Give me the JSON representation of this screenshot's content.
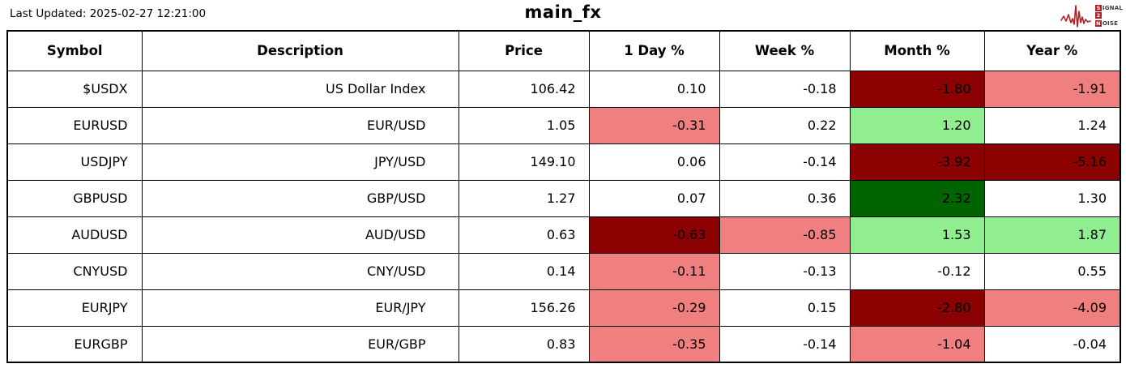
{
  "page": {
    "last_updated": "Last Updated: 2025-02-27 12:21:00",
    "title": "main_fx"
  },
  "logo": {
    "line1_initial": "S",
    "line1_rest": "IGNAL",
    "line2_initial": "2",
    "line3_initial": "N",
    "line3_rest": "OISE",
    "accent": "#b22222",
    "text_color": "#3a3a3a"
  },
  "colors": {
    "darkred": "#8b0000",
    "lightred": "#f08080",
    "lightgreen": "#90ee90",
    "darkgreen": "#006400",
    "white": "#ffffff"
  },
  "table": {
    "columns": [
      "Symbol",
      "Description",
      "Price",
      "1 Day %",
      "Week %",
      "Month %",
      "Year %"
    ],
    "rows": [
      {
        "symbol": "$USDX",
        "description": "US Dollar Index",
        "price": "106.42",
        "changes": [
          {
            "value": "0.10",
            "bg": "white"
          },
          {
            "value": "-0.18",
            "bg": "white"
          },
          {
            "value": "-1.80",
            "bg": "darkred"
          },
          {
            "value": "-1.91",
            "bg": "lightred"
          }
        ]
      },
      {
        "symbol": "EURUSD",
        "description": "EUR/USD",
        "price": "1.05",
        "changes": [
          {
            "value": "-0.31",
            "bg": "lightred"
          },
          {
            "value": "0.22",
            "bg": "white"
          },
          {
            "value": "1.20",
            "bg": "lightgreen"
          },
          {
            "value": "1.24",
            "bg": "white"
          }
        ]
      },
      {
        "symbol": "USDJPY",
        "description": "JPY/USD",
        "price": "149.10",
        "changes": [
          {
            "value": "0.06",
            "bg": "white"
          },
          {
            "value": "-0.14",
            "bg": "white"
          },
          {
            "value": "-3.92",
            "bg": "darkred"
          },
          {
            "value": "-5.16",
            "bg": "darkred"
          }
        ]
      },
      {
        "symbol": "GBPUSD",
        "description": "GBP/USD",
        "price": "1.27",
        "changes": [
          {
            "value": "0.07",
            "bg": "white"
          },
          {
            "value": "0.36",
            "bg": "white"
          },
          {
            "value": "2.32",
            "bg": "darkgreen"
          },
          {
            "value": "1.30",
            "bg": "white"
          }
        ]
      },
      {
        "symbol": "AUDUSD",
        "description": "AUD/USD",
        "price": "0.63",
        "changes": [
          {
            "value": "-0.63",
            "bg": "darkred"
          },
          {
            "value": "-0.85",
            "bg": "lightred"
          },
          {
            "value": "1.53",
            "bg": "lightgreen"
          },
          {
            "value": "1.87",
            "bg": "lightgreen"
          }
        ]
      },
      {
        "symbol": "CNYUSD",
        "description": "CNY/USD",
        "price": "0.14",
        "changes": [
          {
            "value": "-0.11",
            "bg": "lightred"
          },
          {
            "value": "-0.13",
            "bg": "white"
          },
          {
            "value": "-0.12",
            "bg": "white"
          },
          {
            "value": "0.55",
            "bg": "white"
          }
        ]
      },
      {
        "symbol": "EURJPY",
        "description": "EUR/JPY",
        "price": "156.26",
        "changes": [
          {
            "value": "-0.29",
            "bg": "lightred"
          },
          {
            "value": "0.15",
            "bg": "white"
          },
          {
            "value": "-2.80",
            "bg": "darkred"
          },
          {
            "value": "-4.09",
            "bg": "lightred"
          }
        ]
      },
      {
        "symbol": "EURGBP",
        "description": "EUR/GBP",
        "price": "0.83",
        "changes": [
          {
            "value": "-0.35",
            "bg": "lightred"
          },
          {
            "value": "-0.14",
            "bg": "white"
          },
          {
            "value": "-1.04",
            "bg": "lightred"
          },
          {
            "value": "-0.04",
            "bg": "white"
          }
        ]
      }
    ]
  },
  "chart_data": {
    "type": "table",
    "title": "main_fx",
    "columns": [
      "Symbol",
      "Description",
      "Price",
      "1 Day %",
      "Week %",
      "Month %",
      "Year %"
    ],
    "rows": [
      [
        "$USDX",
        "US Dollar Index",
        106.42,
        0.1,
        -0.18,
        -1.8,
        -1.91
      ],
      [
        "EURUSD",
        "EUR/USD",
        1.05,
        -0.31,
        0.22,
        1.2,
        1.24
      ],
      [
        "USDJPY",
        "JPY/USD",
        149.1,
        0.06,
        -0.14,
        -3.92,
        -5.16
      ],
      [
        "GBPUSD",
        "GBP/USD",
        1.27,
        0.07,
        0.36,
        2.32,
        1.3
      ],
      [
        "AUDUSD",
        "AUD/USD",
        0.63,
        -0.63,
        -0.85,
        1.53,
        1.87
      ],
      [
        "CNYUSD",
        "CNY/USD",
        0.14,
        -0.11,
        -0.13,
        -0.12,
        0.55
      ],
      [
        "EURJPY",
        "EUR/JPY",
        156.26,
        -0.29,
        0.15,
        -2.8,
        -4.09
      ],
      [
        "EURGBP",
        "EUR/GBP",
        0.83,
        -0.35,
        -0.14,
        -1.04,
        -0.04
      ]
    ],
    "cell_color_rule": "percent cells shaded: strong negative=darkred #8b0000, mild negative=lightcoral #f08080, mild positive=lightgreen #90ee90, strong positive=darkgreen #006400, neutral=white",
    "legend_position": "none",
    "grid": "full black cell borders"
  }
}
